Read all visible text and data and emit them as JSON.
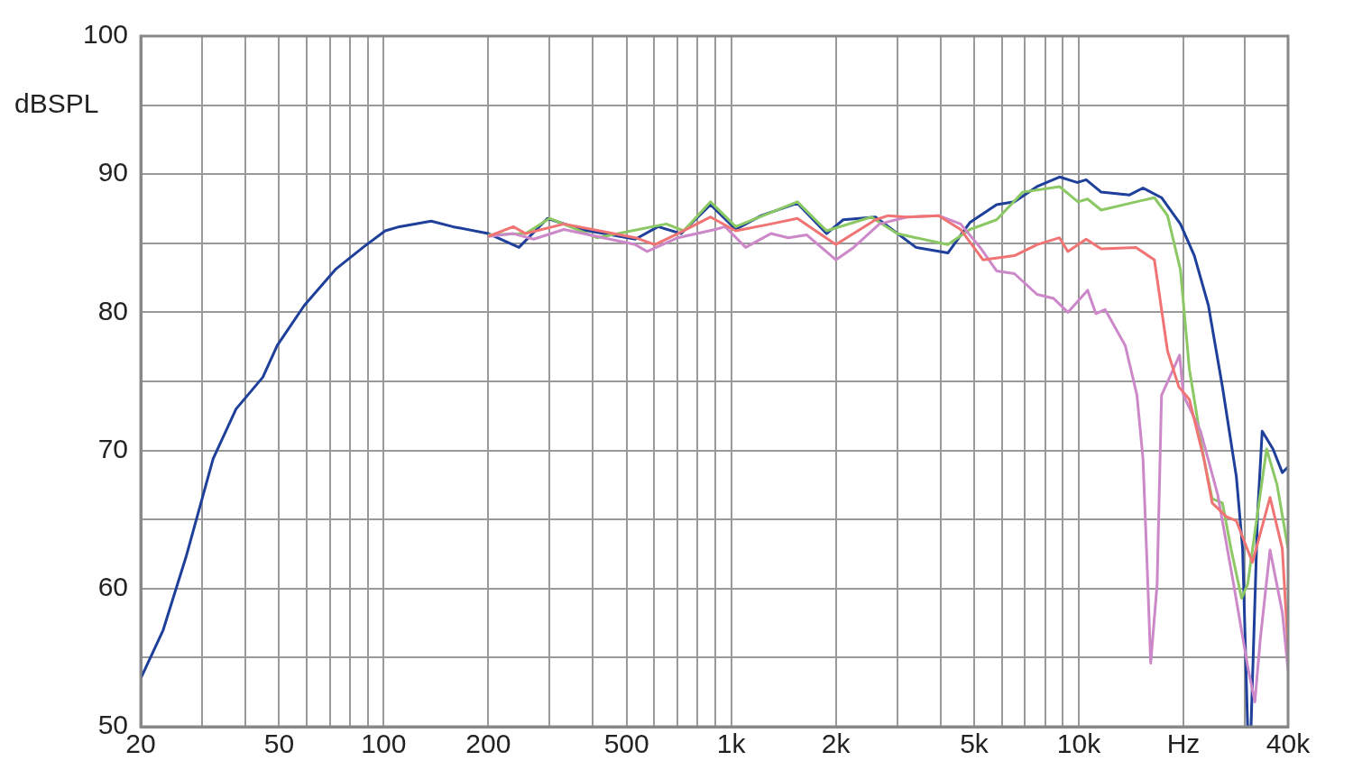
{
  "chart_data": {
    "type": "line",
    "ylabel": "dBSPL",
    "log": "x",
    "grid": true,
    "legend": false,
    "marker": "none",
    "line_style": "solid",
    "xlim": [
      20,
      40000
    ],
    "ylim": [
      50,
      100
    ],
    "xticks": [
      20,
      {
        "value": 30,
        "label": null
      },
      {
        "value": 40,
        "label": null
      },
      50,
      {
        "value": 60,
        "label": null
      },
      {
        "value": 70,
        "label": null
      },
      {
        "value": 80,
        "label": null
      },
      {
        "value": 90,
        "label": null
      },
      100,
      200,
      {
        "value": 300,
        "label": null
      },
      {
        "value": 400,
        "label": null
      },
      500,
      {
        "value": 600,
        "label": null
      },
      {
        "value": 700,
        "label": null
      },
      {
        "value": 800,
        "label": null
      },
      {
        "value": 900,
        "label": null
      },
      {
        "value": 1000,
        "label": "1k"
      },
      {
        "value": 2000,
        "label": "2k"
      },
      {
        "value": 3000,
        "label": null
      },
      {
        "value": 4000,
        "label": null
      },
      {
        "value": 5000,
        "label": "5k"
      },
      {
        "value": 6000,
        "label": null
      },
      {
        "value": 7000,
        "label": null
      },
      {
        "value": 8000,
        "label": null
      },
      {
        "value": 9000,
        "label": null
      },
      {
        "value": 10000,
        "label": "10k"
      },
      {
        "value": 20000,
        "label": "Hz"
      },
      {
        "value": 30000,
        "label": null
      },
      {
        "value": 40000,
        "label": "40k"
      }
    ],
    "yticks": [
      50,
      {
        "value": 55,
        "label": null
      },
      60,
      {
        "value": 65,
        "label": null
      },
      70,
      {
        "value": 75,
        "label": null
      },
      80,
      {
        "value": 85,
        "label": null
      },
      90,
      {
        "value": 95,
        "label": null
      },
      100
    ],
    "series": [
      {
        "color": "#f07474",
        "x": [
          200,
          236,
          256,
          330,
          530,
          603,
          702,
          872,
          1030,
          1300,
          1550,
          2000,
          2600,
          2830,
          3200,
          3950,
          4570,
          5300,
          6530,
          7580,
          8800,
          9300,
          10500,
          11600,
          14600,
          16500,
          18000,
          19400,
          20800,
          22900,
          24200,
          26600,
          28400,
          31600,
          35500,
          38500,
          40000
        ],
        "values": [
          85.5,
          86.2,
          85.7,
          86.4,
          85.4,
          84.9,
          85.7,
          86.9,
          85.9,
          86.4,
          86.8,
          84.9,
          86.7,
          87,
          86.9,
          87,
          86,
          83.8,
          84.1,
          84.9,
          85.4,
          84.4,
          85.3,
          84.6,
          84.7,
          83.8,
          77.2,
          74.6,
          73.7,
          69.4,
          66.2,
          65.2,
          64.9,
          61.9,
          66.6,
          62.9,
          55.7
        ]
      },
      {
        "color": "#cc88c8",
        "x": [
          200,
          236,
          270,
          330,
          530,
          573,
          702,
          900,
          960,
          1100,
          1300,
          1460,
          1650,
          2000,
          2250,
          2670,
          3200,
          3950,
          4570,
          5200,
          5800,
          6530,
          7580,
          8470,
          9300,
          10600,
          11200,
          11900,
          13600,
          14700,
          15300,
          15800,
          16100,
          16800,
          17300,
          19500,
          20000,
          22400,
          25100,
          27900,
          30600,
          32100,
          33300,
          35500,
          38500,
          40000
        ],
        "values": [
          85.5,
          85.7,
          85.3,
          86,
          84.9,
          84.4,
          85.4,
          86,
          86.2,
          84.7,
          85.7,
          85.4,
          85.6,
          83.8,
          84.7,
          86.4,
          86.9,
          87,
          86.4,
          84.7,
          83,
          82.8,
          81.3,
          81,
          80,
          81.6,
          79.9,
          80.2,
          77.6,
          74,
          69.4,
          60.3,
          54.6,
          60.3,
          74,
          76.9,
          74,
          71.4,
          66.8,
          60.3,
          54.4,
          51.8,
          56.4,
          62.8,
          58.3,
          54.1
        ]
      },
      {
        "color": "#8cc864",
        "x": [
          200,
          256,
          300,
          411,
          650,
          730,
          872,
          1030,
          1550,
          1880,
          2530,
          3000,
          3400,
          4200,
          4860,
          5800,
          6900,
          8800,
          9950,
          10600,
          11600,
          14600,
          16500,
          18000,
          19600,
          20800,
          22900,
          24200,
          25900,
          27400,
          29400,
          30600,
          32700,
          34700,
          37200,
          40000
        ],
        "values": [
          85.6,
          85.7,
          86.8,
          85.4,
          86.4,
          85.9,
          88,
          86.2,
          88,
          85.9,
          86.9,
          85.7,
          85.4,
          84.9,
          86,
          86.7,
          88.7,
          89.1,
          88,
          88.2,
          87.4,
          88,
          88.3,
          87,
          83.1,
          75.9,
          69.4,
          66.5,
          66.2,
          62.9,
          59.3,
          60.3,
          65.5,
          70.1,
          67.5,
          62.9
        ]
      },
      {
        "color": "#1e3f9a",
        "x": [
          20,
          23.2,
          27,
          32.3,
          37.6,
          44.9,
          49.4,
          59.1,
          72.6,
          87.2,
          101,
          111,
          137,
          158,
          200,
          245,
          296,
          369,
          530,
          616,
          717,
          872,
          1030,
          1220,
          1550,
          1880,
          2100,
          2600,
          3400,
          4200,
          4860,
          5800,
          6530,
          7580,
          8800,
          9900,
          10500,
          11600,
          14000,
          15300,
          17300,
          19600,
          21500,
          23600,
          25900,
          28400,
          29600,
          30600,
          31300,
          32700,
          33700,
          36200,
          38500,
          40000
        ],
        "values": [
          53.5,
          57,
          62.3,
          69.4,
          73,
          75.3,
          77.6,
          80.5,
          83.1,
          84.7,
          85.9,
          86.2,
          86.6,
          86.2,
          85.7,
          84.7,
          86.8,
          86,
          85.3,
          86.2,
          85.7,
          87.8,
          86,
          87,
          87.9,
          85.7,
          86.7,
          86.9,
          84.7,
          84.3,
          86.5,
          87.8,
          88,
          89.1,
          89.8,
          89.4,
          89.6,
          88.7,
          88.5,
          89,
          88.3,
          86.4,
          84.1,
          80.5,
          74.6,
          68.1,
          62.9,
          50,
          50,
          65.5,
          71.4,
          70.1,
          68.4,
          68.8
        ]
      }
    ]
  }
}
